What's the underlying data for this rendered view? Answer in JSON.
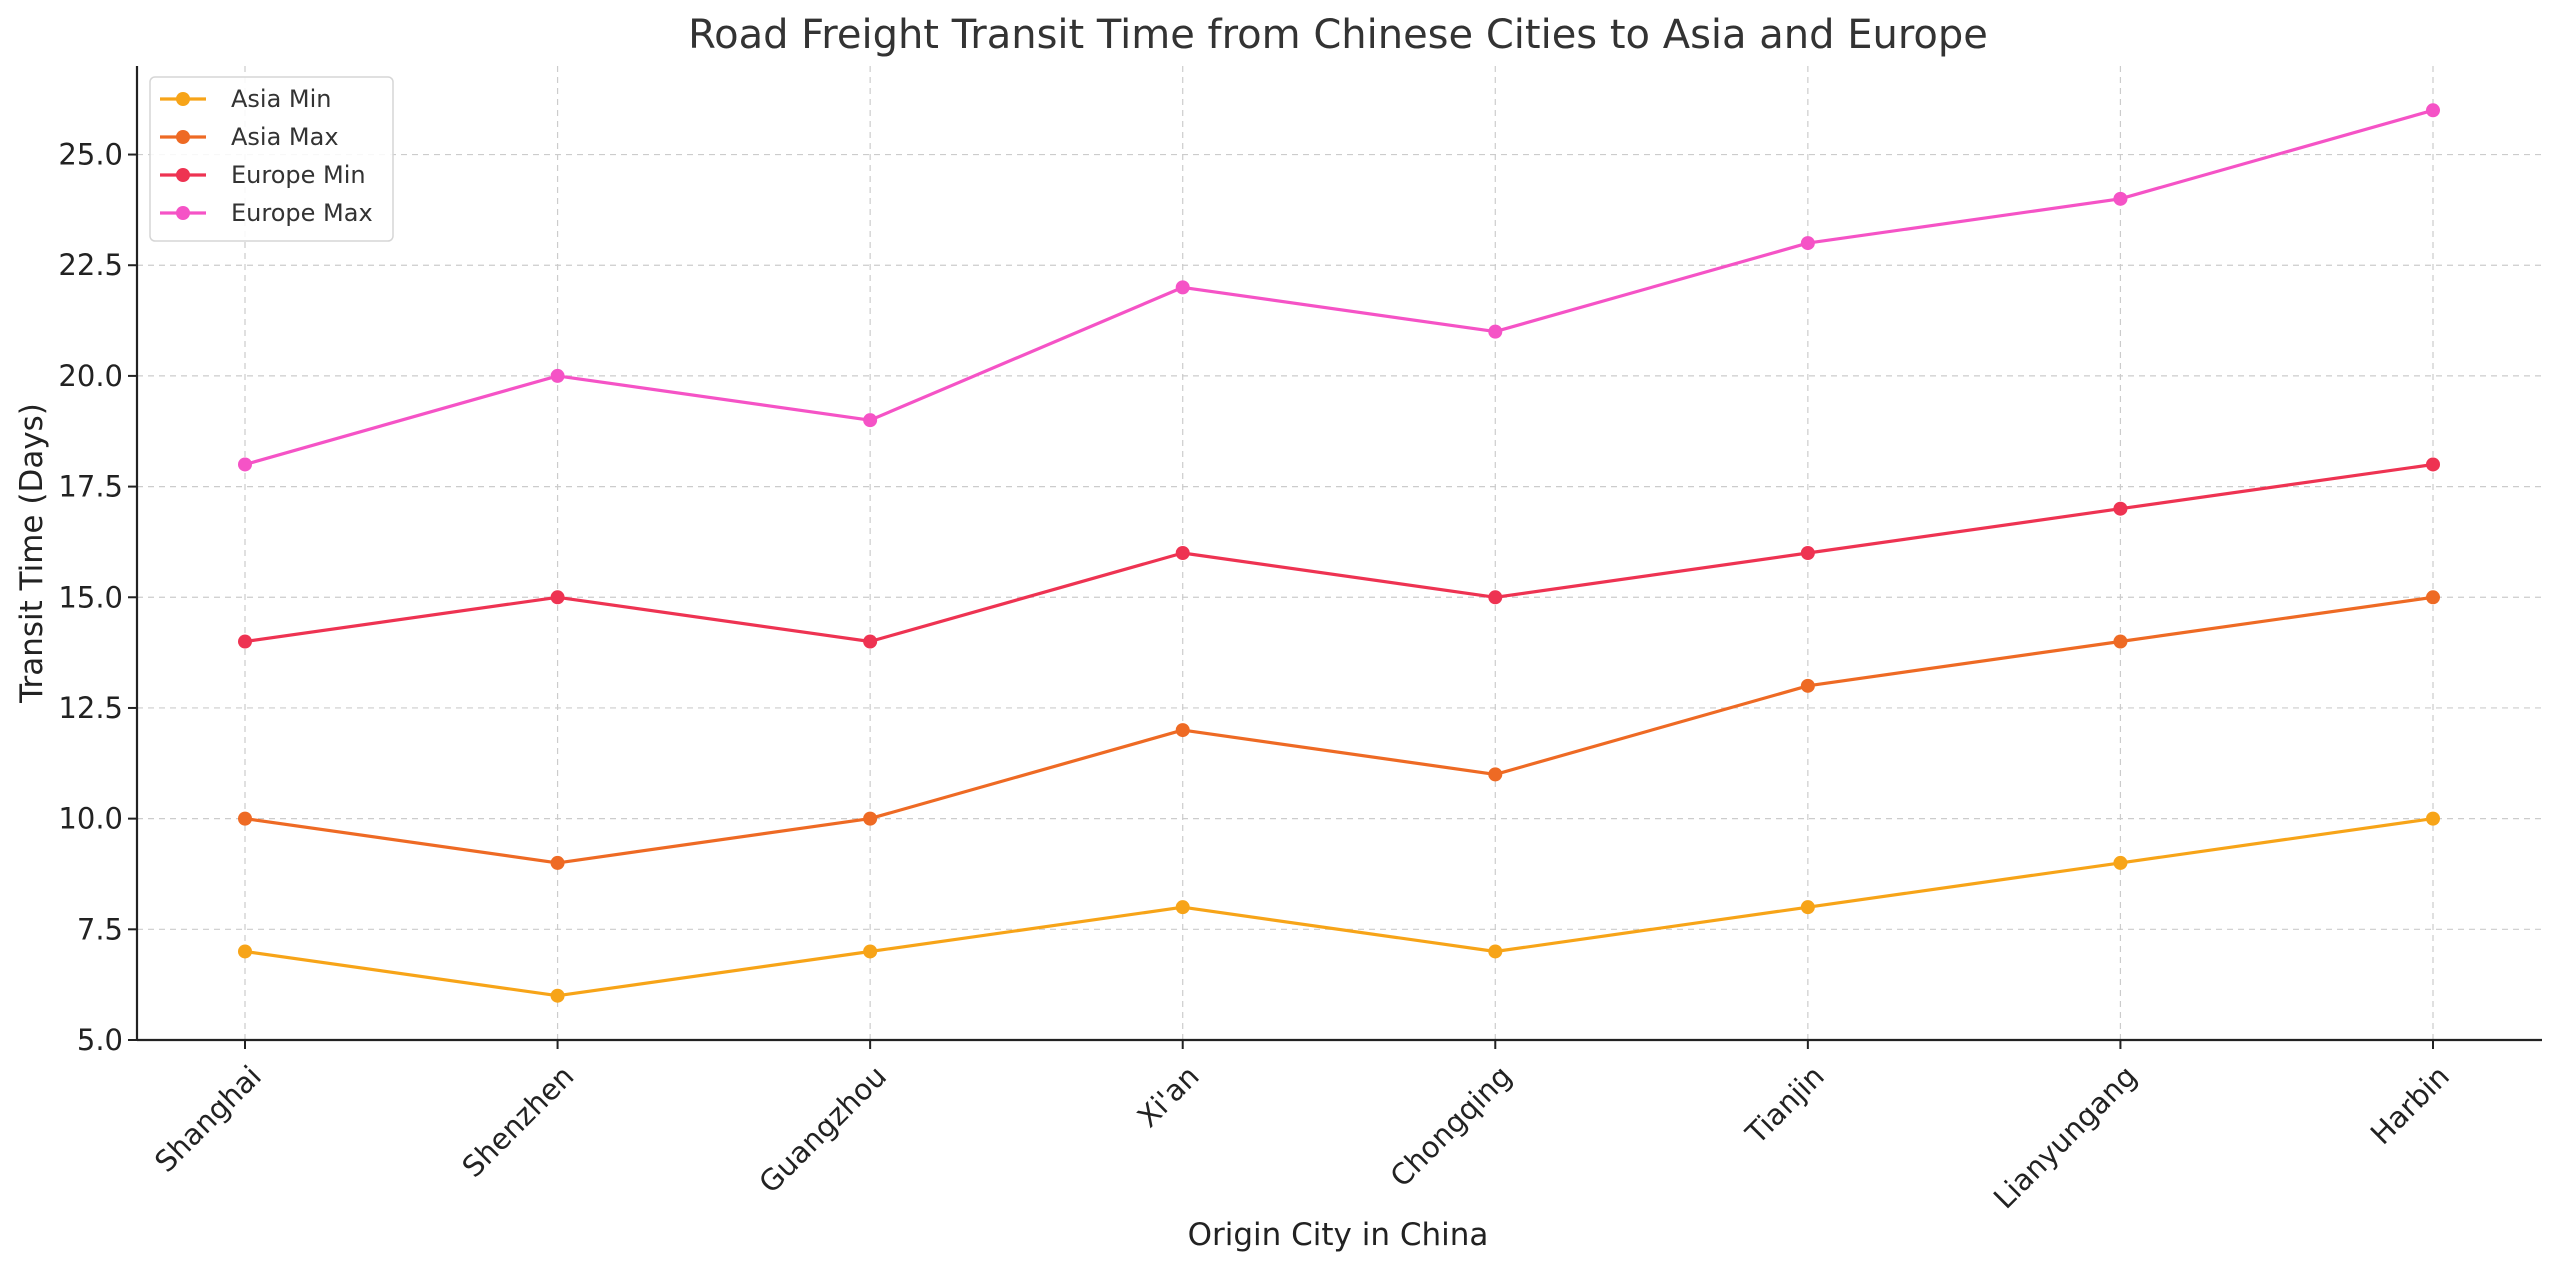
{
  "chart_data": {
    "type": "line",
    "title": "Road Freight Transit Time from Chinese Cities to Asia and Europe",
    "xlabel": "Origin City in China",
    "ylabel": "Transit Time (Days)",
    "categories": [
      "Shanghai",
      "Shenzhen",
      "Guangzhou",
      "Xi'an",
      "Chongqing",
      "Tianjin",
      "Lianyungang",
      "Harbin"
    ],
    "ylim": [
      5.0,
      27.0
    ],
    "yticks": [
      "5.0",
      "7.5",
      "10.0",
      "12.5",
      "15.0",
      "17.5",
      "20.0",
      "22.5",
      "25.0"
    ],
    "ytick_values": [
      5.0,
      7.5,
      10.0,
      12.5,
      15.0,
      17.5,
      20.0,
      22.5,
      25.0
    ],
    "grid": true,
    "legend_position": "top-left",
    "series": [
      {
        "name": "Asia Min",
        "color": "#f7a418",
        "values": [
          7,
          6,
          7,
          8,
          7,
          8,
          9,
          10
        ]
      },
      {
        "name": "Asia Max",
        "color": "#ee6a24",
        "values": [
          10,
          9,
          10,
          12,
          11,
          13,
          14,
          15
        ]
      },
      {
        "name": "Europe Min",
        "color": "#ee3352",
        "values": [
          14,
          15,
          14,
          16,
          15,
          16,
          17,
          18
        ]
      },
      {
        "name": "Europe Max",
        "color": "#f553c6",
        "values": [
          18,
          20,
          19,
          22,
          21,
          23,
          24,
          26
        ]
      }
    ]
  }
}
